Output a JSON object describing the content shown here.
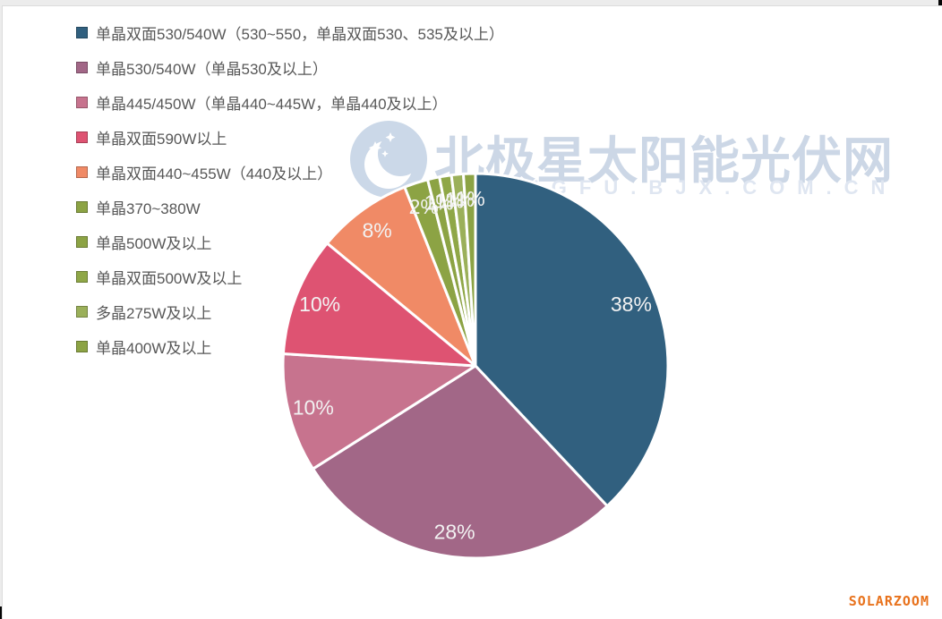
{
  "watermark": {
    "title": "北极星太阳能光伏网",
    "subtitle": "GUANGFU.BJX.COM.CN",
    "logo_icon": "crescent-moon-with-stars",
    "color": "#ccd7e6"
  },
  "footer": {
    "brand": "SOLARZOOM",
    "brand_color": "#e8721c"
  },
  "chart_data": {
    "type": "pie",
    "title": "",
    "legend_position": "top-left",
    "start_angle_deg": 0,
    "direction": "clockwise",
    "total": 100,
    "slices": [
      {
        "label": "单晶双面530/540W（530~550，单晶双面530、535及以上）",
        "value": 38,
        "display": "38%",
        "color": "#31607F"
      },
      {
        "label": "单晶530/540W（单晶530及以上）",
        "value": 28,
        "display": "28%",
        "color": "#A26787"
      },
      {
        "label": "单晶445/450W（单晶440~445W，单晶440及以上）",
        "value": 10,
        "display": "10%",
        "color": "#C7738E"
      },
      {
        "label": "单晶双面590W以上",
        "value": 10,
        "display": "10%",
        "color": "#DE5372"
      },
      {
        "label": "单晶双面440~455W（440及以上）",
        "value": 8,
        "display": "8%",
        "color": "#F08A66"
      },
      {
        "label": "单晶370~380W",
        "value": 2,
        "display": "2%",
        "color": "#8CA344"
      },
      {
        "label": "单晶500W及以上",
        "value": 1,
        "display": "1%",
        "color": "#8CA344"
      },
      {
        "label": "单晶双面500W及以上",
        "value": 1,
        "display": "1%",
        "color": "#8FA747"
      },
      {
        "label": "多晶275W及以上",
        "value": 1,
        "display": "1%",
        "color": "#9BB05A"
      },
      {
        "label": "单晶400W及以上",
        "value": 1,
        "display": "1%",
        "color": "#8CA344"
      }
    ]
  }
}
